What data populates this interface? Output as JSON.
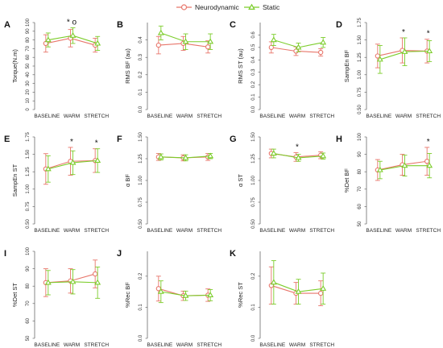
{
  "legend": {
    "placement": "top-center",
    "items": [
      {
        "label": "Neurodynamic",
        "color": "#e8766b",
        "marker": "circle"
      },
      {
        "label": "Static",
        "color": "#7ccd2b",
        "marker": "triangle"
      }
    ]
  },
  "chart_data": [
    {
      "panel": "A",
      "type": "line",
      "ylabel": "Torque(N.m)",
      "ylim": [
        0,
        100
      ],
      "yticks": [
        "0",
        "10",
        "20",
        "30",
        "40",
        "50",
        "60",
        "70",
        "80",
        "90",
        "100"
      ],
      "categories": [
        "BASELINE",
        "WARM",
        "STRETCH"
      ],
      "series": [
        {
          "name": "Neurodynamic",
          "values": [
            76,
            82,
            74
          ],
          "err": [
            10,
            10,
            8
          ]
        },
        {
          "name": "Static",
          "values": [
            80,
            85,
            76
          ],
          "err": [
            8,
            9,
            8
          ]
        }
      ],
      "annotations": [
        {
          "category": "WARM",
          "text": "* o"
        }
      ]
    },
    {
      "panel": "B",
      "type": "line",
      "ylabel": "RMS BF (au)",
      "ylim": [
        0,
        0.5
      ],
      "yticks": [
        "0.0",
        "0.1",
        "0.2",
        "0.3",
        "0.4"
      ],
      "categories": [
        "BASELINE",
        "WARM",
        "STRETCH"
      ],
      "series": [
        {
          "name": "Neurodynamic",
          "values": [
            0.37,
            0.38,
            0.36
          ],
          "err": [
            0.05,
            0.04,
            0.035
          ]
        },
        {
          "name": "Static",
          "values": [
            0.44,
            0.39,
            0.39
          ],
          "err": [
            0.04,
            0.045,
            0.045
          ]
        }
      ],
      "annotations": []
    },
    {
      "panel": "C",
      "type": "line",
      "ylabel": "RMS ST (au)",
      "ylim": [
        0,
        0.7
      ],
      "yticks": [
        "0.0",
        "0.1",
        "0.2",
        "0.3",
        "0.4",
        "0.5",
        "0.6"
      ],
      "categories": [
        "BASELINE",
        "WARM",
        "STRETCH"
      ],
      "series": [
        {
          "name": "Neurodynamic",
          "values": [
            0.5,
            0.47,
            0.46
          ],
          "err": [
            0.045,
            0.035,
            0.03
          ]
        },
        {
          "name": "Static",
          "values": [
            0.56,
            0.5,
            0.54
          ],
          "err": [
            0.045,
            0.035,
            0.04
          ]
        }
      ],
      "annotations": []
    },
    {
      "panel": "D",
      "type": "line",
      "ylabel": "SampEn BF",
      "ylim": [
        0.5,
        1.75
      ],
      "yticks": [
        "0.50",
        "0.75",
        "1.00",
        "1.25",
        "1.50",
        "1.75"
      ],
      "categories": [
        "BASELINE",
        "WARM",
        "STRETCH"
      ],
      "series": [
        {
          "name": "Neurodynamic",
          "values": [
            1.27,
            1.35,
            1.34
          ],
          "err": [
            0.17,
            0.18,
            0.17
          ]
        },
        {
          "name": "Static",
          "values": [
            1.22,
            1.33,
            1.34
          ],
          "err": [
            0.2,
            0.2,
            0.15
          ]
        }
      ],
      "annotations": [
        {
          "category": "WARM",
          "text": "*"
        },
        {
          "category": "STRETCH",
          "text": "*"
        }
      ]
    },
    {
      "panel": "E",
      "type": "line",
      "ylabel": "SampEn ST",
      "ylim": [
        0.5,
        1.75
      ],
      "yticks": [
        "0.50",
        "0.75",
        "1.00",
        "1.25",
        "1.50",
        "1.75"
      ],
      "categories": [
        "BASELINE",
        "WARM",
        "STRETCH"
      ],
      "series": [
        {
          "name": "Neurodynamic",
          "values": [
            1.29,
            1.4,
            1.41
          ],
          "err": [
            0.22,
            0.2,
            0.17
          ]
        },
        {
          "name": "Static",
          "values": [
            1.29,
            1.38,
            1.41
          ],
          "err": [
            0.19,
            0.17,
            0.17
          ]
        }
      ],
      "annotations": [
        {
          "category": "WARM",
          "text": "*"
        },
        {
          "category": "STRETCH",
          "text": "*"
        }
      ]
    },
    {
      "panel": "F",
      "type": "line",
      "ylabel": "α BF",
      "ylim": [
        0.5,
        1.5
      ],
      "yticks": [
        "0.50",
        "0.75",
        "1.00",
        "1.25",
        "1.50"
      ],
      "categories": [
        "BASELINE",
        "WARM",
        "STRETCH"
      ],
      "series": [
        {
          "name": "Neurodynamic",
          "values": [
            1.27,
            1.26,
            1.27
          ],
          "err": [
            0.04,
            0.035,
            0.04
          ]
        },
        {
          "name": "Static",
          "values": [
            1.27,
            1.26,
            1.28
          ],
          "err": [
            0.035,
            0.035,
            0.03
          ]
        }
      ],
      "annotations": []
    },
    {
      "panel": "G",
      "type": "line",
      "ylabel": "α ST",
      "ylim": [
        0.5,
        1.5
      ],
      "yticks": [
        "0.50",
        "0.75",
        "1.00",
        "1.25",
        "1.50"
      ],
      "categories": [
        "BASELINE",
        "WARM",
        "STRETCH"
      ],
      "series": [
        {
          "name": "Neurodynamic",
          "values": [
            1.31,
            1.27,
            1.29
          ],
          "err": [
            0.05,
            0.05,
            0.04
          ]
        },
        {
          "name": "Static",
          "values": [
            1.31,
            1.26,
            1.28
          ],
          "err": [
            0.05,
            0.04,
            0.035
          ]
        }
      ],
      "annotations": [
        {
          "category": "WARM",
          "text": "*"
        }
      ]
    },
    {
      "panel": "H",
      "type": "line",
      "ylabel": "%Det BF",
      "ylim": [
        50,
        100
      ],
      "yticks": [
        "50",
        "60",
        "70",
        "80",
        "90",
        "100"
      ],
      "categories": [
        "BASELINE",
        "WARM",
        "STRETCH"
      ],
      "series": [
        {
          "name": "Neurodynamic",
          "values": [
            81,
            84,
            86
          ],
          "err": [
            6,
            6,
            8
          ]
        },
        {
          "name": "Static",
          "values": [
            81,
            83.5,
            83.5
          ],
          "err": [
            5,
            6,
            7
          ]
        }
      ],
      "annotations": [
        {
          "category": "STRETCH",
          "text": "*"
        }
      ]
    },
    {
      "panel": "I",
      "type": "line",
      "ylabel": "%Det ST",
      "ylim": [
        50,
        100
      ],
      "yticks": [
        "50",
        "60",
        "70",
        "80",
        "90",
        "100"
      ],
      "categories": [
        "BASELINE",
        "WARM",
        "STRETCH"
      ],
      "series": [
        {
          "name": "Neurodynamic",
          "values": [
            82,
            83,
            87
          ],
          "err": [
            8,
            7,
            8
          ]
        },
        {
          "name": "Static",
          "values": [
            82,
            82.5,
            82
          ],
          "err": [
            7,
            7,
            9
          ]
        }
      ],
      "annotations": []
    },
    {
      "panel": "J",
      "type": "line",
      "ylabel": "%Rec BF",
      "ylim": [
        0,
        0.28
      ],
      "yticks": [
        "0.0",
        "0.1",
        "0.2"
      ],
      "categories": [
        "BASELINE",
        "WARM",
        "STRETCH"
      ],
      "series": [
        {
          "name": "Neurodynamic",
          "values": [
            0.16,
            0.137,
            0.139
          ],
          "err": [
            0.04,
            0.015,
            0.02
          ]
        },
        {
          "name": "Static",
          "values": [
            0.15,
            0.137,
            0.139
          ],
          "err": [
            0.035,
            0.015,
            0.018
          ]
        }
      ],
      "annotations": []
    },
    {
      "panel": "K",
      "type": "line",
      "ylabel": "%Rec ST",
      "ylim": [
        0,
        0.28
      ],
      "yticks": [
        "0.0",
        "0.1",
        "0.2"
      ],
      "categories": [
        "BASELINE",
        "WARM",
        "STRETCH"
      ],
      "series": [
        {
          "name": "Neurodynamic",
          "values": [
            0.17,
            0.145,
            0.145
          ],
          "err": [
            0.06,
            0.035,
            0.04
          ]
        },
        {
          "name": "Static",
          "values": [
            0.18,
            0.15,
            0.16
          ],
          "err": [
            0.07,
            0.04,
            0.05
          ]
        }
      ],
      "annotations": []
    }
  ]
}
